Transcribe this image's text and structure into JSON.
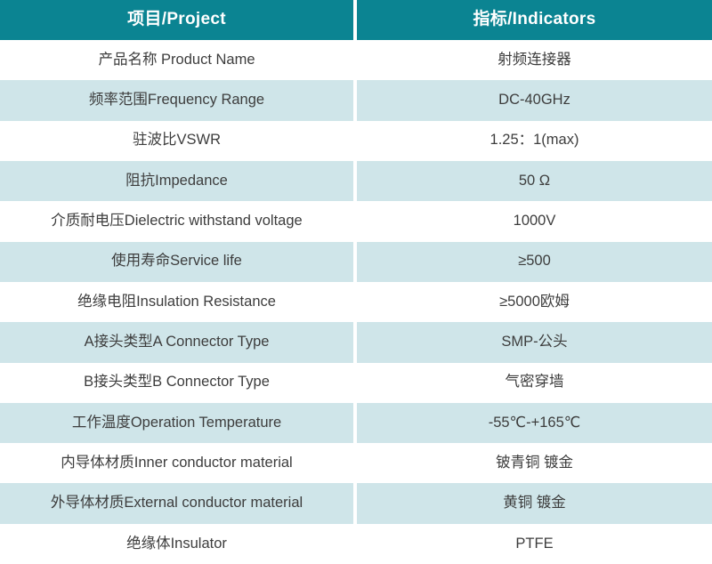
{
  "table": {
    "header": {
      "project": "项目/Project",
      "indicators": "指标/Indicators"
    },
    "rows": [
      {
        "project": "产品名称 Product Name",
        "indicator": "射频连接器"
      },
      {
        "project": "频率范围Frequency Range",
        "indicator": "DC-40GHz"
      },
      {
        "project": "驻波比VSWR",
        "indicator": "1.25：1(max)"
      },
      {
        "project": "阻抗Impedance",
        "indicator": "50 Ω"
      },
      {
        "project": "介质耐电压Dielectric withstand voltage",
        "indicator": "1000V"
      },
      {
        "project": "使用寿命Service life",
        "indicator": "≥500"
      },
      {
        "project": "绝缘电阻Insulation Resistance",
        "indicator": "≥5000欧姆"
      },
      {
        "project": "A接头类型A Connector Type",
        "indicator": "SMP-公头"
      },
      {
        "project": "B接头类型B Connector Type",
        "indicator": "气密穿墙"
      },
      {
        "project": "工作温度Operation Temperature",
        "indicator": "-55℃-+165℃"
      },
      {
        "project": "内导体材质Inner conductor material",
        "indicator": "铍青铜 镀金"
      },
      {
        "project": "外导体材质External conductor material",
        "indicator": "黄铜 镀金"
      },
      {
        "project": "绝缘体Insulator",
        "indicator": "PTFE"
      }
    ],
    "colors": {
      "header_bg": "#0b8492",
      "header_text": "#ffffff",
      "row_bg": "#ffffff",
      "row_alt_bg": "#cfe5e9",
      "text": "#3d3d3d",
      "divider": "#ffffff"
    }
  }
}
